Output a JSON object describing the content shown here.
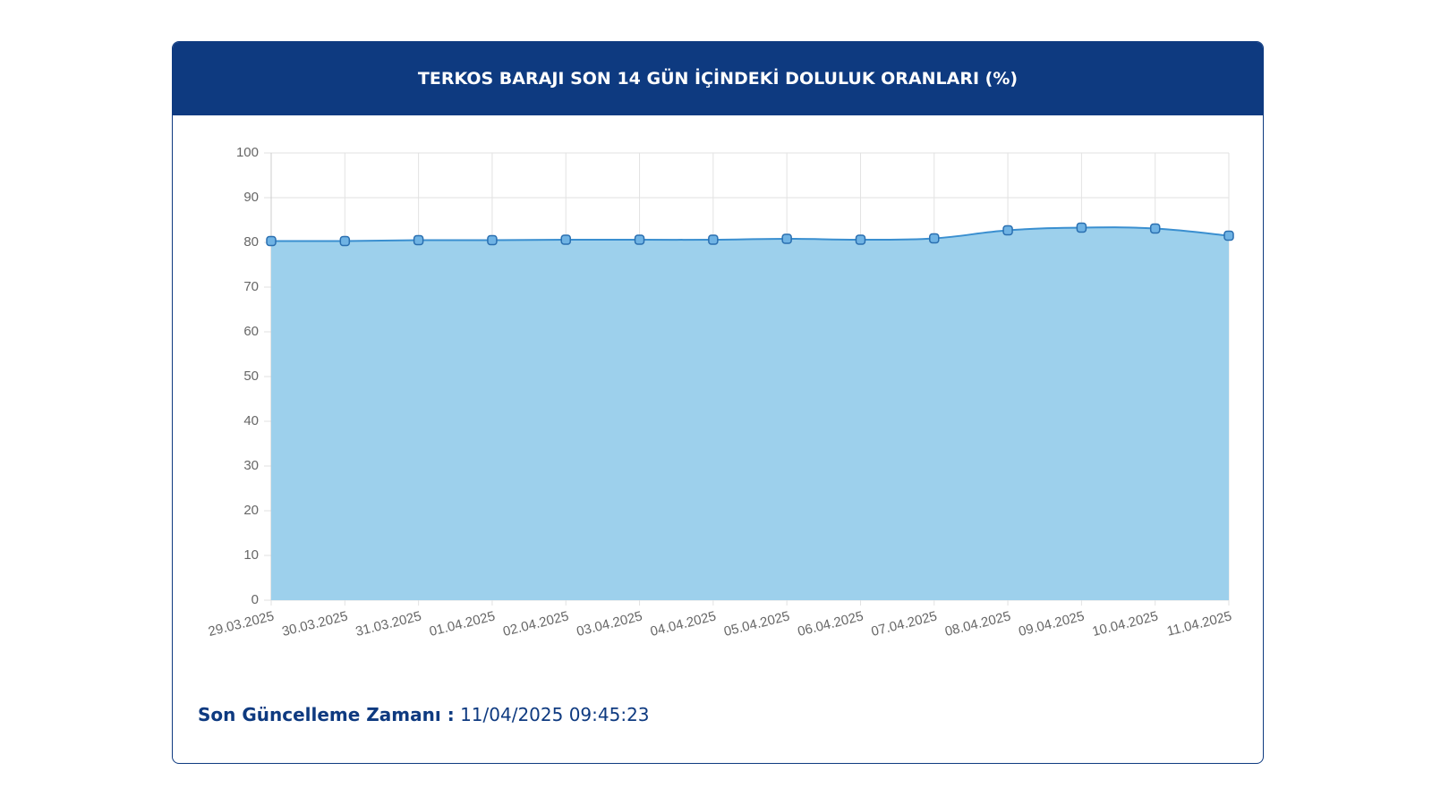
{
  "chart_data": {
    "type": "area",
    "title": "TERKOS BARAJI SON 14 GÜN İÇİNDEKİ DOLULUK ORANLARI (%)",
    "categories": [
      "29.03.2025",
      "30.03.2025",
      "31.03.2025",
      "01.04.2025",
      "02.04.2025",
      "03.04.2025",
      "04.04.2025",
      "05.04.2025",
      "06.04.2025",
      "07.04.2025",
      "08.04.2025",
      "09.04.2025",
      "10.04.2025",
      "11.04.2025"
    ],
    "values": [
      80.3,
      80.3,
      80.5,
      80.5,
      80.6,
      80.6,
      80.6,
      80.8,
      80.6,
      80.9,
      82.7,
      83.3,
      83.1,
      81.5
    ],
    "color": "#3a8fd0",
    "fill_color": "#9dd0ec",
    "ylim": [
      0,
      100
    ],
    "yticks": [
      0,
      10,
      20,
      30,
      40,
      50,
      60,
      70,
      80,
      90,
      100
    ],
    "grid": true
  },
  "footer": {
    "label": "Son Güncelleme Zamanı :",
    "timestamp": "11/04/2025 09:45:23"
  }
}
